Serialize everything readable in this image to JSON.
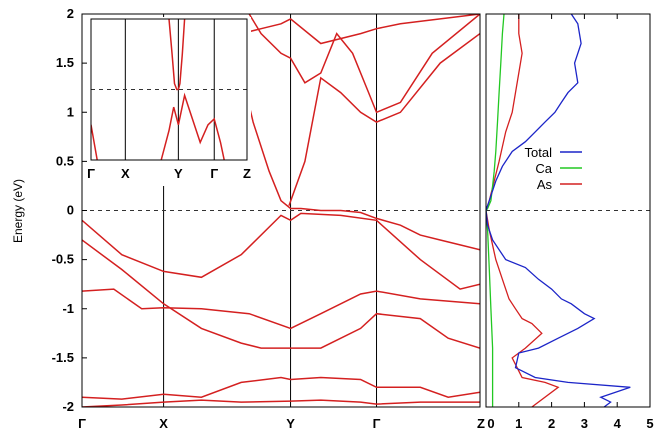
{
  "chart_data": [
    {
      "type": "line",
      "ylabel": "Energy (eV)",
      "ylim": [
        -2,
        2
      ],
      "yticks": [
        "-2",
        "-1.5",
        "-1",
        "-0.5",
        "0",
        "0.5",
        "1",
        "1.5",
        "2"
      ],
      "kpath_labels": [
        "Γ",
        "X",
        "Y",
        "Γ",
        "Z"
      ],
      "kpath_positions": [
        0,
        0.205,
        0.524,
        0.74,
        1.0
      ],
      "fermi_level": 0,
      "band_color": "#d42020",
      "bands": [
        {
          "x": [
            0,
            0.1,
            0.205,
            0.3,
            0.4,
            0.5,
            0.524,
            0.55,
            0.65,
            0.74,
            0.85,
            0.95,
            1.0
          ],
          "y": [
            -0.1,
            -0.45,
            -0.62,
            -0.68,
            -0.45,
            -0.05,
            -0.1,
            -0.03,
            -0.05,
            -0.1,
            -0.5,
            -0.8,
            -0.75
          ]
        },
        {
          "x": [
            0,
            0.08,
            0.15,
            0.205,
            0.3,
            0.42,
            0.524,
            0.6,
            0.7,
            0.74,
            0.85,
            1.0
          ],
          "y": [
            -0.82,
            -0.8,
            -1.0,
            -0.99,
            -1.0,
            -1.05,
            -1.2,
            -1.05,
            -0.85,
            -0.82,
            -0.9,
            -0.95
          ]
        },
        {
          "x": [
            0,
            0.1,
            0.205,
            0.3,
            0.4,
            0.5,
            0.524,
            0.6,
            0.7,
            0.74,
            0.85,
            0.92,
            1.0
          ],
          "y": [
            -1.9,
            -1.92,
            -1.87,
            -1.9,
            -1.75,
            -1.7,
            -1.72,
            -1.7,
            -1.72,
            -1.8,
            -1.8,
            -1.9,
            -1.85
          ]
        },
        {
          "x": [
            0,
            0.1,
            0.205,
            0.3,
            0.4,
            0.524,
            0.6,
            0.7,
            0.74,
            0.85,
            1.0
          ],
          "y": [
            -2.0,
            -1.98,
            -1.95,
            -1.93,
            -1.95,
            -1.94,
            -1.93,
            -1.95,
            -1.97,
            -1.95,
            -1.95
          ]
        },
        {
          "x": [
            0,
            0.1,
            0.205,
            0.3,
            0.4,
            0.45,
            0.5,
            0.524,
            0.6,
            0.7,
            0.74,
            0.85,
            0.92,
            1.0
          ],
          "y": [
            -0.3,
            -0.6,
            -0.95,
            -1.2,
            -1.35,
            -1.4,
            -1.4,
            -1.4,
            -1.4,
            -1.2,
            -1.05,
            -1.1,
            -1.3,
            -1.4
          ]
        },
        {
          "x": [
            0.395,
            0.43,
            0.47,
            0.5,
            0.524,
            0.55,
            0.6,
            0.65,
            0.7,
            0.74,
            0.8,
            0.85,
            0.9,
            0.95,
            1.0
          ],
          "y": [
            1.5,
            0.9,
            0.4,
            0.1,
            0.02,
            0.02,
            0.0,
            0.0,
            -0.02,
            -0.08,
            -0.15,
            -0.25,
            -0.3,
            -0.35,
            -0.4
          ]
        },
        {
          "x": [
            0.42,
            0.45,
            0.5,
            0.524,
            0.56,
            0.6,
            0.64,
            0.68,
            0.72,
            0.74,
            0.8,
            0.88,
            1.0
          ],
          "y": [
            2.0,
            1.8,
            1.6,
            1.55,
            1.3,
            1.4,
            1.8,
            1.6,
            1.2,
            1.0,
            1.1,
            1.6,
            2.0
          ]
        },
        {
          "x": [
            0.52,
            0.56,
            0.6,
            0.65,
            0.7,
            0.74,
            0.8,
            0.9,
            1.0
          ],
          "y": [
            0.05,
            0.5,
            1.35,
            1.2,
            1.0,
            0.9,
            1.0,
            1.5,
            1.8
          ]
        },
        {
          "x": [
            0.4,
            0.45,
            0.5,
            0.524,
            0.6,
            0.7,
            0.74,
            0.8,
            0.9,
            1.0
          ],
          "y": [
            1.8,
            1.85,
            1.9,
            1.95,
            1.7,
            1.8,
            1.85,
            1.9,
            1.95,
            2.0
          ]
        }
      ]
    },
    {
      "type": "line",
      "xlim": [
        0,
        5
      ],
      "xticks": [
        "0",
        "1",
        "2",
        "3",
        "4",
        "5"
      ],
      "ylim": [
        -2,
        2
      ],
      "legend_position": "center-right",
      "fermi_level": 0,
      "series": [
        {
          "name": "Total",
          "color": "#1c25c8",
          "x": [
            2.6,
            2.8,
            2.9,
            2.7,
            2.8,
            2.5,
            2.3,
            2.1,
            1.8,
            1.5,
            1.2,
            0.8,
            0.5,
            0.3,
            0.15,
            0.05,
            0.0,
            0.05,
            0.2,
            0.6,
            1.2,
            1.6,
            2.0,
            2.3,
            2.6,
            3.0,
            3.3,
            2.8,
            2.2,
            1.6,
            1.0,
            0.9,
            1.5,
            2.5,
            4.4,
            3.5,
            3.8,
            3.6
          ],
          "y": [
            2.0,
            1.9,
            1.7,
            1.5,
            1.3,
            1.2,
            1.1,
            1.0,
            0.9,
            0.8,
            0.7,
            0.6,
            0.45,
            0.3,
            0.15,
            0.05,
            0.0,
            -0.15,
            -0.3,
            -0.5,
            -0.58,
            -0.7,
            -0.8,
            -0.9,
            -0.95,
            -1.05,
            -1.1,
            -1.2,
            -1.3,
            -1.4,
            -1.45,
            -1.6,
            -1.7,
            -1.75,
            -1.8,
            -1.9,
            -1.95,
            -2.0
          ]
        },
        {
          "name": "Ca",
          "color": "#22c822",
          "x": [
            0.55,
            0.5,
            0.45,
            0.4,
            0.35,
            0.3,
            0.25,
            0.2,
            0.15,
            0.05,
            0.0,
            0.05,
            0.1,
            0.15,
            0.2,
            0.2,
            0.2
          ],
          "y": [
            2.0,
            1.8,
            1.5,
            1.2,
            0.9,
            0.6,
            0.4,
            0.25,
            0.1,
            0.02,
            0.0,
            -0.2,
            -0.6,
            -1.0,
            -1.4,
            -1.8,
            -2.0
          ]
        },
        {
          "name": "As",
          "color": "#d42020",
          "x": [
            1.0,
            1.0,
            1.1,
            1.0,
            0.9,
            0.8,
            0.6,
            0.4,
            0.25,
            0.1,
            0.0,
            0.1,
            0.3,
            0.5,
            0.7,
            0.9,
            1.1,
            1.4,
            1.7,
            1.2,
            0.8,
            1.1,
            1.8,
            2.2,
            1.4
          ],
          "y": [
            2.0,
            1.8,
            1.6,
            1.4,
            1.2,
            1.0,
            0.8,
            0.5,
            0.3,
            0.1,
            0.0,
            -0.2,
            -0.5,
            -0.7,
            -0.9,
            -1.0,
            -1.1,
            -1.15,
            -1.25,
            -1.4,
            -1.5,
            -1.7,
            -1.75,
            -1.8,
            -2.0
          ]
        }
      ]
    },
    {
      "type": "line",
      "kpath_labels": [
        "Γ",
        "X",
        "Y",
        "Γ",
        "Z"
      ],
      "kpath_positions": [
        0,
        0.22,
        0.56,
        0.79,
        1.0
      ],
      "fermi_level": 0,
      "ylim": [
        -0.6,
        0.6
      ],
      "band_color": "#d42020",
      "bands": [
        {
          "x": [
            0.0,
            0.02,
            0.04
          ],
          "y": [
            -0.3,
            -0.45,
            -0.6
          ]
        },
        {
          "x": [
            0.5,
            0.52,
            0.535,
            0.55,
            0.56
          ],
          "y": [
            0.6,
            0.3,
            0.05,
            0.0,
            0.0
          ]
        },
        {
          "x": [
            0.56,
            0.57,
            0.585,
            0.6
          ],
          "y": [
            0.0,
            0.05,
            0.3,
            0.6
          ]
        },
        {
          "x": [
            0.4,
            0.45,
            0.5,
            0.53,
            0.56,
            0.6,
            0.65,
            0.7,
            0.75,
            0.79,
            0.83,
            0.87
          ],
          "y": [
            -0.9,
            -0.6,
            -0.35,
            -0.15,
            -0.3,
            -0.05,
            -0.25,
            -0.45,
            -0.3,
            -0.25,
            -0.45,
            -0.7
          ]
        }
      ]
    }
  ]
}
